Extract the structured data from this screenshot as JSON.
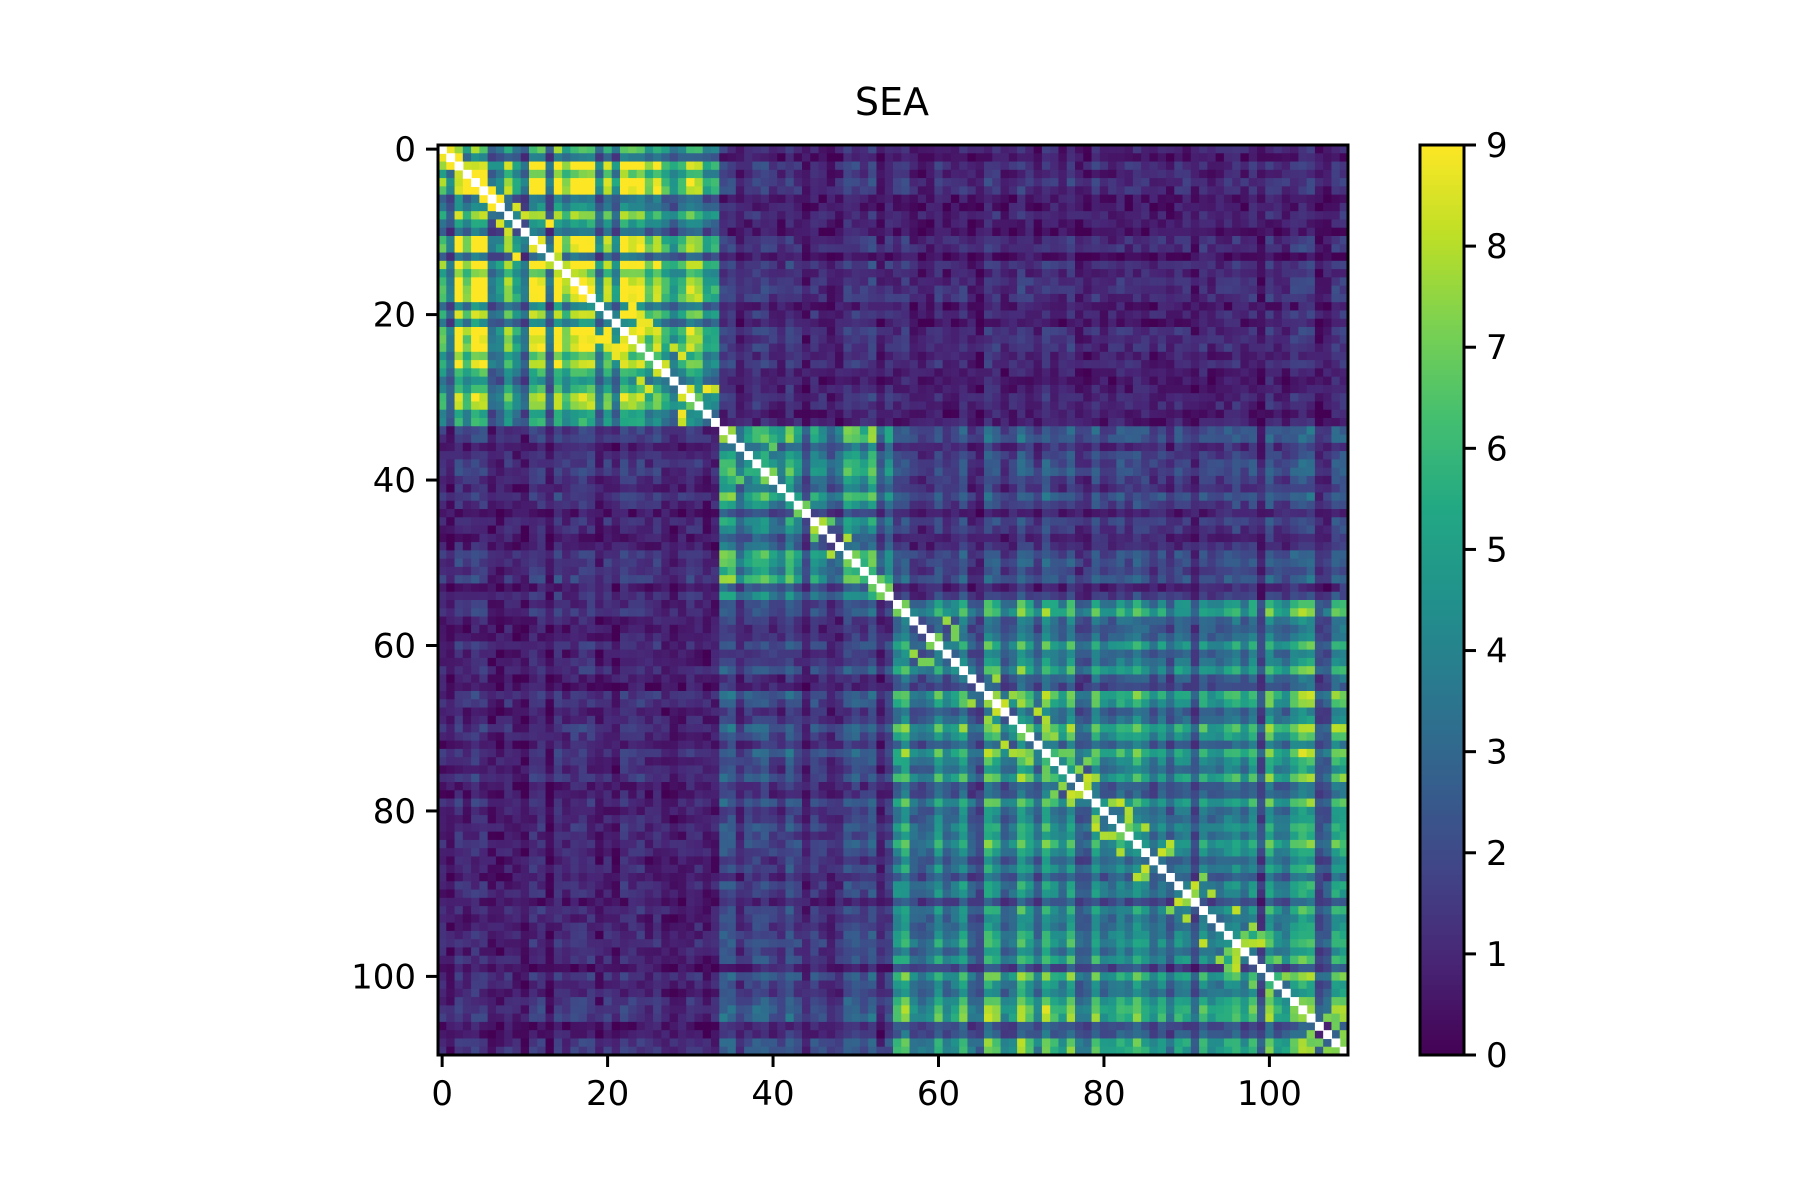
{
  "chart_data": {
    "type": "heatmap",
    "title": "SEA",
    "xlabel": "",
    "ylabel": "",
    "n": 110,
    "x_ticks": [
      0,
      20,
      40,
      60,
      80,
      100
    ],
    "y_ticks": [
      0,
      20,
      40,
      60,
      80,
      100
    ],
    "colorbar": {
      "min": 0,
      "max": 9,
      "ticks": [
        0,
        1,
        2,
        3,
        4,
        5,
        6,
        7,
        8,
        9
      ],
      "colormap": "viridis"
    },
    "diagonal_color": "#ffffff",
    "blocks": [
      {
        "from": 0,
        "to": 33,
        "within": 5.2,
        "spike": 7.8
      },
      {
        "from": 34,
        "to": 54,
        "within": 3.8,
        "spike": 6.5
      },
      {
        "from": 55,
        "to": 110,
        "within": 4.3,
        "spike": 6.8
      }
    ],
    "between_blocks": [
      {
        "a": 0,
        "b": 1,
        "value": 1.0
      },
      {
        "a": 0,
        "b": 2,
        "value": 0.9
      },
      {
        "a": 1,
        "b": 2,
        "value": 1.7
      }
    ]
  }
}
